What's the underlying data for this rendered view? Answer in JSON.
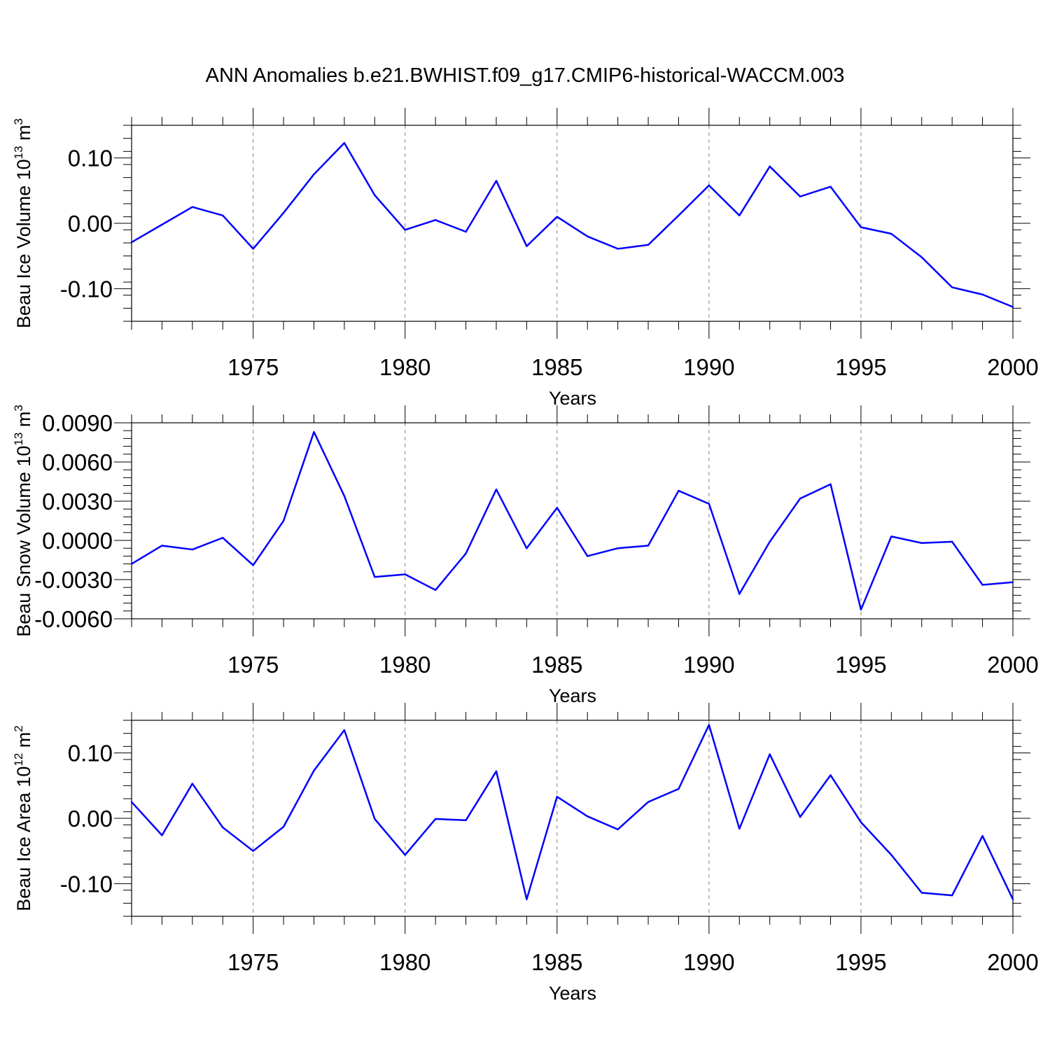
{
  "title": "ANN Anomalies b.e21.BWHIST.f09_g17.CMIP6-historical-WACCM.003",
  "colors": {
    "line": "#0000ff",
    "grid": "#808080",
    "axis": "#000000"
  },
  "chart_data": [
    {
      "type": "line",
      "ylabel": {
        "text": "Beau Ice Volume 10",
        "sup": "13",
        "unit": " m",
        "unit_sup": "3"
      },
      "xlabel": "Years",
      "xlim": [
        1971,
        2000
      ],
      "ylim": [
        -0.15,
        0.15
      ],
      "x_ticks": [
        1975,
        1980,
        1985,
        1990,
        1995,
        2000
      ],
      "y_ticks": [
        {
          "v": -0.1,
          "label": "-0.10"
        },
        {
          "v": 0.0,
          "label": "0.00"
        },
        {
          "v": 0.1,
          "label": "0.10"
        }
      ],
      "grid": "vertical dashed at major x ticks",
      "x": [
        1971,
        1972,
        1973,
        1974,
        1975,
        1976,
        1977,
        1978,
        1979,
        1980,
        1981,
        1982,
        1983,
        1984,
        1985,
        1986,
        1987,
        1988,
        1989,
        1990,
        1991,
        1992,
        1993,
        1994,
        1995,
        1996,
        1997,
        1998,
        1999,
        2000
      ],
      "y": [
        -0.029,
        -0.002,
        0.025,
        0.012,
        -0.039,
        0.016,
        0.075,
        0.123,
        0.043,
        -0.01,
        0.005,
        -0.013,
        0.065,
        -0.035,
        0.01,
        -0.02,
        -0.039,
        -0.033,
        0.012,
        0.058,
        0.012,
        0.087,
        0.041,
        0.056,
        -0.006,
        -0.016,
        -0.052,
        -0.098,
        -0.109,
        -0.128
      ]
    },
    {
      "type": "line",
      "ylabel": {
        "text": "Beau Snow Volume 10",
        "sup": "13",
        "unit": " m",
        "unit_sup": "3"
      },
      "xlabel": "Years",
      "xlim": [
        1971,
        2000
      ],
      "ylim": [
        -0.006,
        0.009
      ],
      "x_ticks": [
        1975,
        1980,
        1985,
        1990,
        1995,
        2000
      ],
      "y_ticks": [
        {
          "v": -0.006,
          "label": "-0.0060"
        },
        {
          "v": -0.003,
          "label": "-0.0030"
        },
        {
          "v": 0.0,
          "label": "0.0000"
        },
        {
          "v": 0.003,
          "label": "0.0030"
        },
        {
          "v": 0.006,
          "label": "0.0060"
        },
        {
          "v": 0.009,
          "label": "0.0090"
        }
      ],
      "grid": "vertical dashed at major x ticks",
      "x": [
        1971,
        1972,
        1973,
        1974,
        1975,
        1976,
        1977,
        1978,
        1979,
        1980,
        1981,
        1982,
        1983,
        1984,
        1985,
        1986,
        1987,
        1988,
        1989,
        1990,
        1991,
        1992,
        1993,
        1994,
        1995,
        1996,
        1997,
        1998,
        1999,
        2000
      ],
      "y": [
        -0.0018,
        -0.0004,
        -0.0007,
        0.0002,
        -0.0019,
        0.0015,
        0.0083,
        0.0034,
        -0.0028,
        -0.0026,
        -0.0038,
        -0.001,
        0.0039,
        -0.0006,
        0.0025,
        -0.0012,
        -0.0006,
        -0.0004,
        0.0038,
        0.0028,
        -0.0041,
        -0.0001,
        0.0032,
        0.0043,
        -0.0053,
        0.0003,
        -0.0002,
        -0.0001,
        -0.0034,
        -0.0032
      ]
    },
    {
      "type": "line",
      "ylabel": {
        "text": "Beau Ice Area 10",
        "sup": "12",
        "unit": " m",
        "unit_sup": "2"
      },
      "xlabel": "Years",
      "xlim": [
        1971,
        2000
      ],
      "ylim": [
        -0.15,
        0.15
      ],
      "x_ticks": [
        1975,
        1980,
        1985,
        1990,
        1995,
        2000
      ],
      "y_ticks": [
        {
          "v": -0.1,
          "label": "-0.10"
        },
        {
          "v": 0.0,
          "label": "0.00"
        },
        {
          "v": 0.1,
          "label": "0.10"
        }
      ],
      "grid": "vertical dashed at major x ticks",
      "x": [
        1971,
        1972,
        1973,
        1974,
        1975,
        1976,
        1977,
        1978,
        1979,
        1980,
        1981,
        1982,
        1983,
        1984,
        1985,
        1986,
        1987,
        1988,
        1989,
        1990,
        1991,
        1992,
        1993,
        1994,
        1995,
        1996,
        1997,
        1998,
        1999,
        2000
      ],
      "y": [
        0.025,
        -0.026,
        0.053,
        -0.014,
        -0.05,
        -0.013,
        0.073,
        0.135,
        -0.001,
        -0.056,
        -0.001,
        -0.003,
        0.072,
        -0.124,
        0.033,
        0.003,
        -0.017,
        0.025,
        0.045,
        0.143,
        -0.016,
        0.098,
        0.002,
        0.066,
        -0.006,
        -0.056,
        -0.114,
        -0.118,
        -0.027,
        -0.124
      ]
    }
  ]
}
